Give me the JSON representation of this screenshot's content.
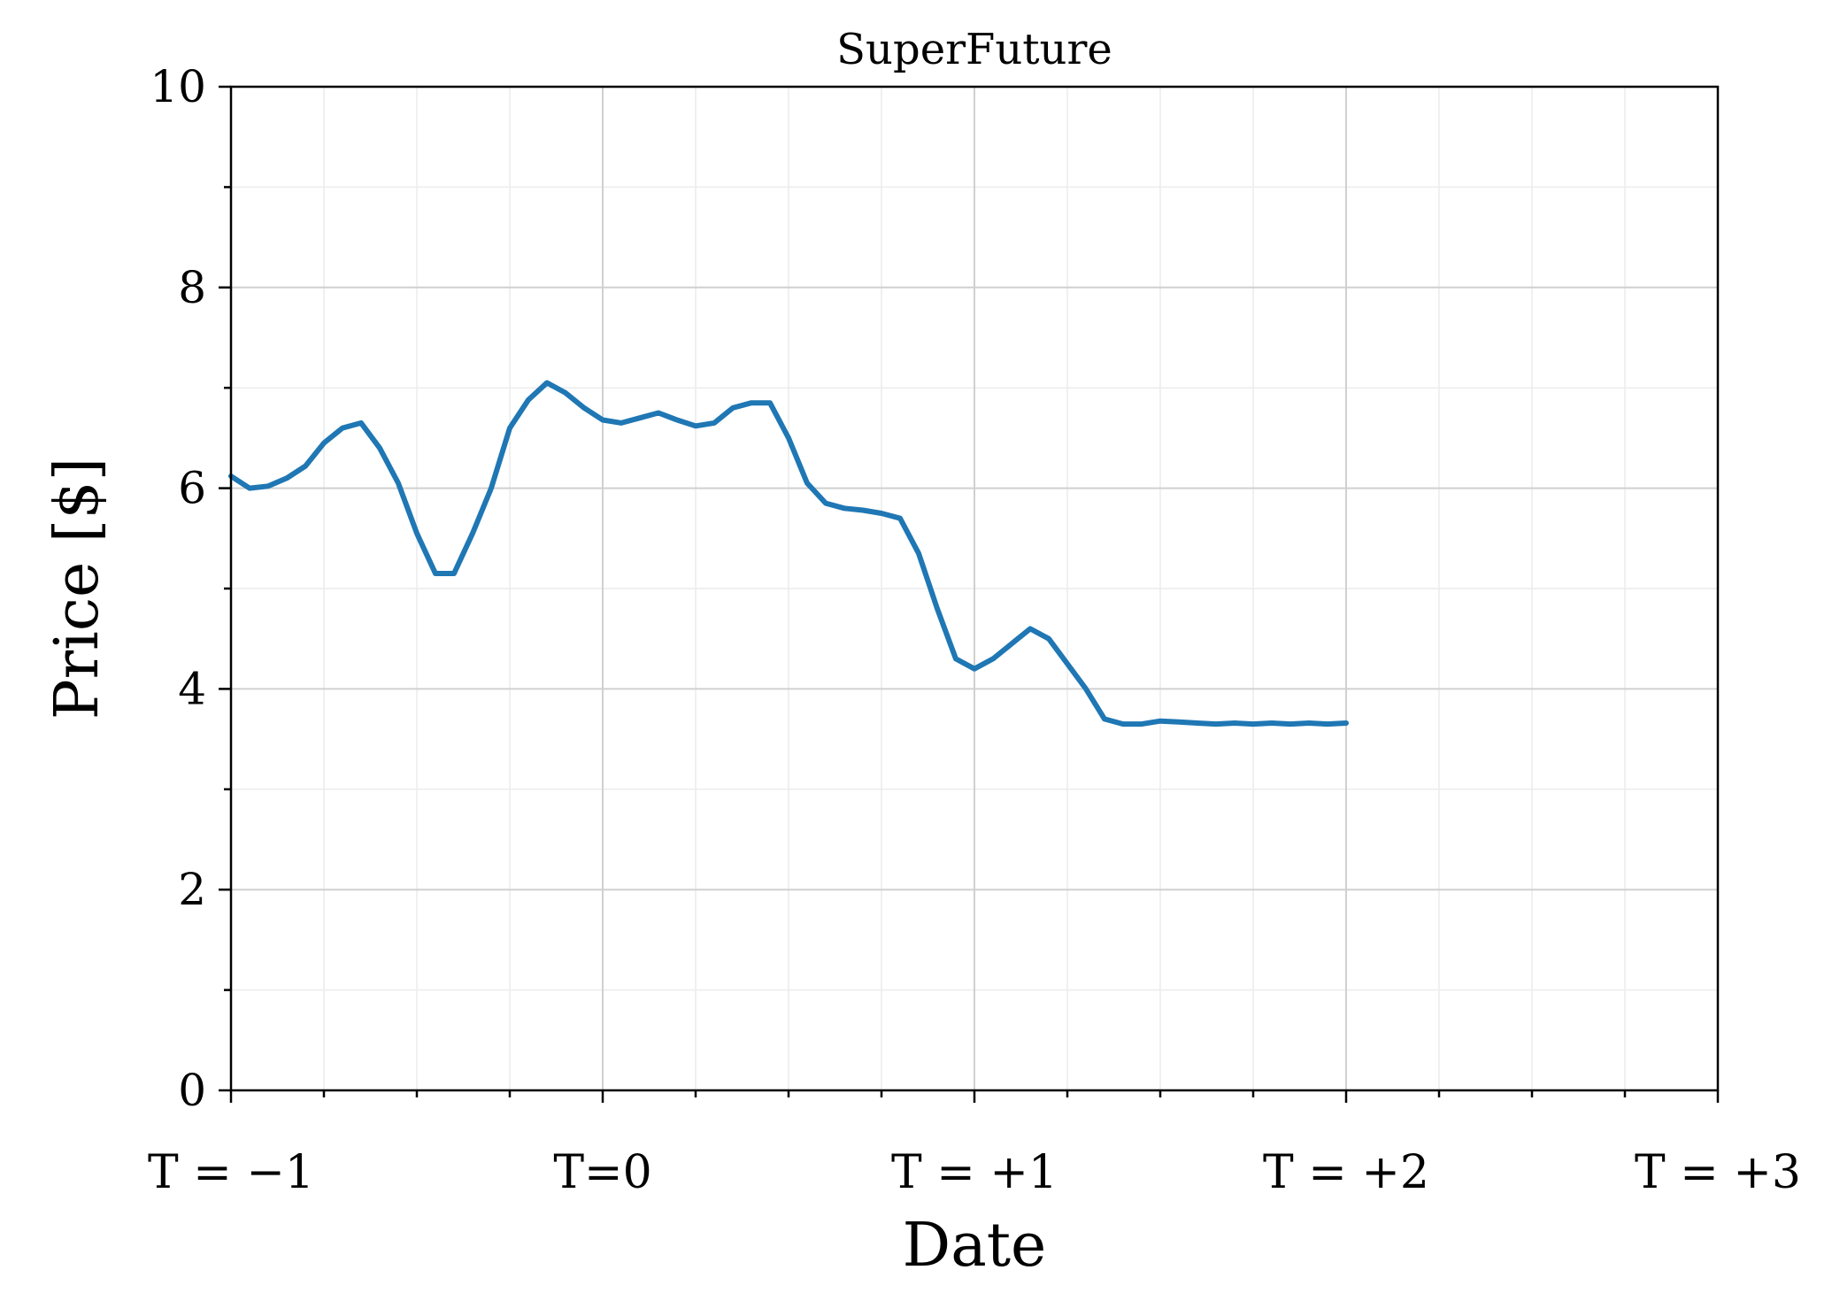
{
  "chart_data": {
    "type": "line",
    "title": "SuperFuture",
    "xlabel": "Date",
    "ylabel": "Price [$]",
    "xlim": [
      -1,
      3
    ],
    "ylim": [
      0,
      10
    ],
    "x_ticks": [
      {
        "value": -1,
        "label": "T = −1"
      },
      {
        "value": 0,
        "label": "T=0"
      },
      {
        "value": 1,
        "label": "T = +1"
      },
      {
        "value": 2,
        "label": "T = +2"
      },
      {
        "value": 3,
        "label": "T = +3"
      }
    ],
    "y_ticks": [
      {
        "value": 0,
        "label": "0"
      },
      {
        "value": 2,
        "label": "2"
      },
      {
        "value": 4,
        "label": "4"
      },
      {
        "value": 6,
        "label": "6"
      },
      {
        "value": 8,
        "label": "8"
      },
      {
        "value": 10,
        "label": "10"
      }
    ],
    "grid": true,
    "line_color": "#1f77b4",
    "series": [
      {
        "x": [
          -1.0,
          -0.95,
          -0.9,
          -0.85,
          -0.8,
          -0.75,
          -0.7,
          -0.65,
          -0.6,
          -0.55,
          -0.5,
          -0.45,
          -0.4,
          -0.35,
          -0.3,
          -0.25,
          -0.2,
          -0.15,
          -0.1,
          -0.05,
          0.0,
          0.05,
          0.1,
          0.15,
          0.2,
          0.25,
          0.3,
          0.35,
          0.4,
          0.45,
          0.5,
          0.55,
          0.6,
          0.65,
          0.7,
          0.75,
          0.8,
          0.85,
          0.9,
          0.95,
          1.0,
          1.05,
          1.1,
          1.15,
          1.2,
          1.25,
          1.3,
          1.35,
          1.4,
          1.45,
          1.5,
          1.55,
          1.6,
          1.65,
          1.7,
          1.75,
          1.8,
          1.85,
          1.9,
          1.95,
          2.0
        ],
        "y": [
          6.12,
          6.0,
          6.02,
          6.1,
          6.22,
          6.45,
          6.6,
          6.65,
          6.4,
          6.05,
          5.55,
          5.15,
          5.15,
          5.55,
          6.0,
          6.6,
          6.88,
          7.05,
          6.95,
          6.8,
          6.68,
          6.65,
          6.7,
          6.75,
          6.68,
          6.62,
          6.65,
          6.8,
          6.85,
          6.85,
          6.5,
          6.05,
          5.85,
          5.8,
          5.78,
          5.75,
          5.7,
          5.35,
          4.8,
          4.3,
          4.2,
          4.3,
          4.45,
          4.6,
          4.5,
          4.25,
          4.0,
          3.7,
          3.65,
          3.65,
          3.68,
          3.67,
          3.66,
          3.65,
          3.66,
          3.65,
          3.66,
          3.65,
          3.66,
          3.65,
          3.66
        ]
      }
    ]
  }
}
